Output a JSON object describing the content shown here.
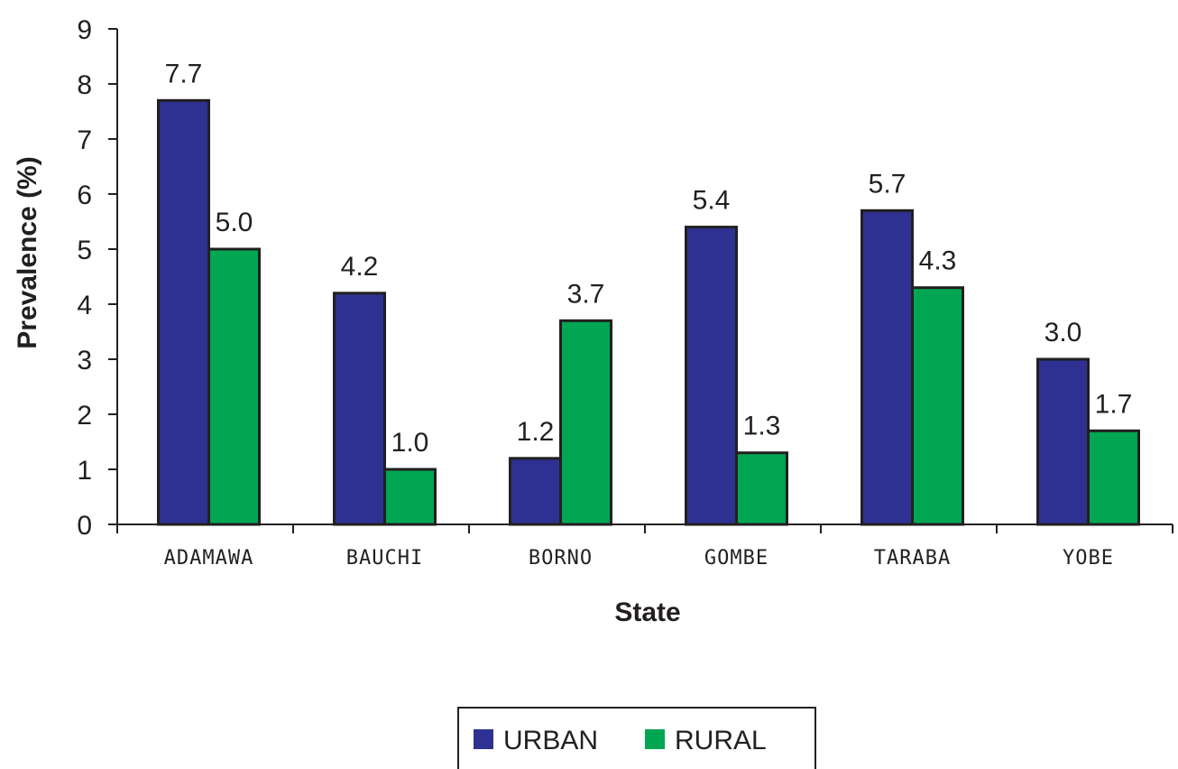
{
  "chart_data": {
    "type": "bar",
    "xlabel": "State",
    "ylabel": "Prevalence (%)",
    "ylim": [
      0,
      9
    ],
    "yticks": [
      "0",
      "1",
      "2",
      "3",
      "4",
      "5",
      "6",
      "7",
      "8",
      "9"
    ],
    "categories": [
      "ADAMAWA",
      "BAUCHI",
      "BORNO",
      "GOMBE",
      "TARABA",
      "YOBE"
    ],
    "series": [
      {
        "name": "URBAN",
        "color": "#2e3192",
        "values": [
          7.7,
          4.2,
          1.2,
          5.4,
          5.7,
          3.0
        ],
        "labels": [
          "7.7",
          "4.2",
          "1.2",
          "5.4",
          "5.7",
          "3.0"
        ]
      },
      {
        "name": "RURAL",
        "color": "#00a651",
        "values": [
          5.0,
          1.0,
          3.7,
          1.3,
          4.3,
          1.7
        ],
        "labels": [
          "5.0",
          "1.0",
          "3.7",
          "1.3",
          "4.3",
          "1.7"
        ]
      }
    ],
    "legend_position": "bottom-center",
    "grid": false
  }
}
